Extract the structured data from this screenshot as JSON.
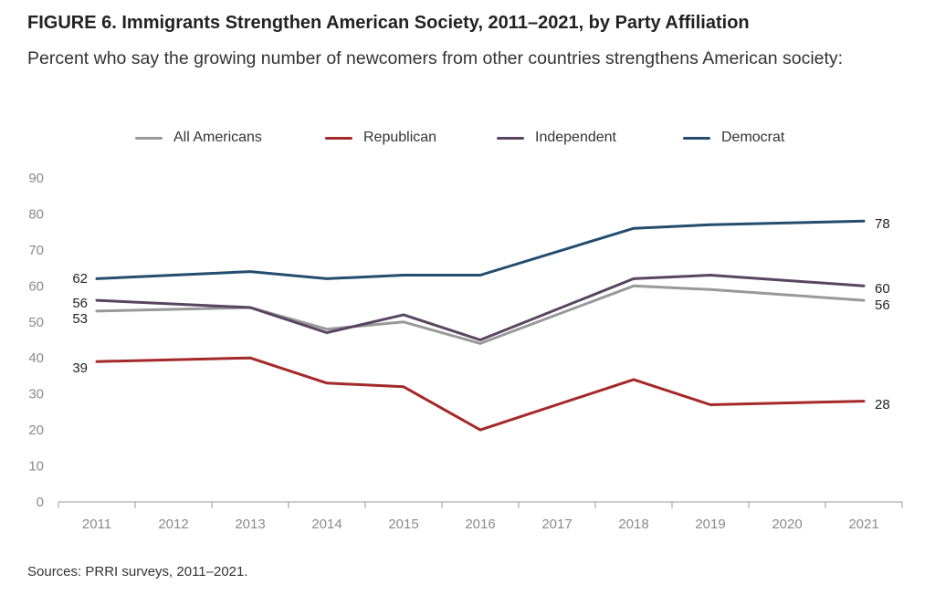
{
  "title": "FIGURE 6. Immigrants Strengthen American Society, 2011–2021, by Party Affiliation",
  "subtitle": "Percent who say the growing number of newcomers from other countries strengthens American society:",
  "source": "Sources: PRRI surveys, 2011–2021.",
  "chart_data": {
    "type": "line",
    "title": "FIGURE 6. Immigrants Strengthen American Society, 2011–2021, by Party Affiliation",
    "subtitle": "Percent who say the growing number of newcomers from other countries strengthens American society:",
    "x": [
      "2011",
      "2012",
      "2013",
      "2014",
      "2015",
      "2016",
      "2017",
      "2018",
      "2019",
      "2020",
      "2021"
    ],
    "ylim": [
      0,
      90
    ],
    "yticks": [
      0,
      10,
      20,
      30,
      40,
      50,
      60,
      70,
      80,
      90
    ],
    "grid": false,
    "legend_position": "top",
    "series": [
      {
        "name": "All Americans",
        "color": "#999999",
        "values": [
          53,
          null,
          54,
          48,
          50,
          44,
          null,
          60,
          59,
          null,
          56
        ]
      },
      {
        "name": "Republican",
        "color": "#a5282a",
        "values": [
          39,
          null,
          40,
          33,
          32,
          20,
          null,
          34,
          27,
          null,
          28
        ]
      },
      {
        "name": "Independent",
        "color": "#5a4560",
        "values": [
          56,
          null,
          54,
          47,
          52,
          45,
          null,
          62,
          63,
          null,
          60
        ]
      },
      {
        "name": "Democrat",
        "color": "#234d6e",
        "values": [
          62,
          null,
          64,
          62,
          63,
          63,
          null,
          76,
          77,
          null,
          78
        ]
      }
    ],
    "start_labels": [
      {
        "series": "Democrat",
        "text": "62"
      },
      {
        "series": "Independent",
        "text": "56"
      },
      {
        "series": "All Americans",
        "text": "53"
      },
      {
        "series": "Republican",
        "text": "39"
      }
    ],
    "end_labels": [
      {
        "series": "Democrat",
        "text": "78"
      },
      {
        "series": "Independent",
        "text": "60"
      },
      {
        "series": "All Americans",
        "text": "56"
      },
      {
        "series": "Republican",
        "text": "28"
      }
    ]
  }
}
